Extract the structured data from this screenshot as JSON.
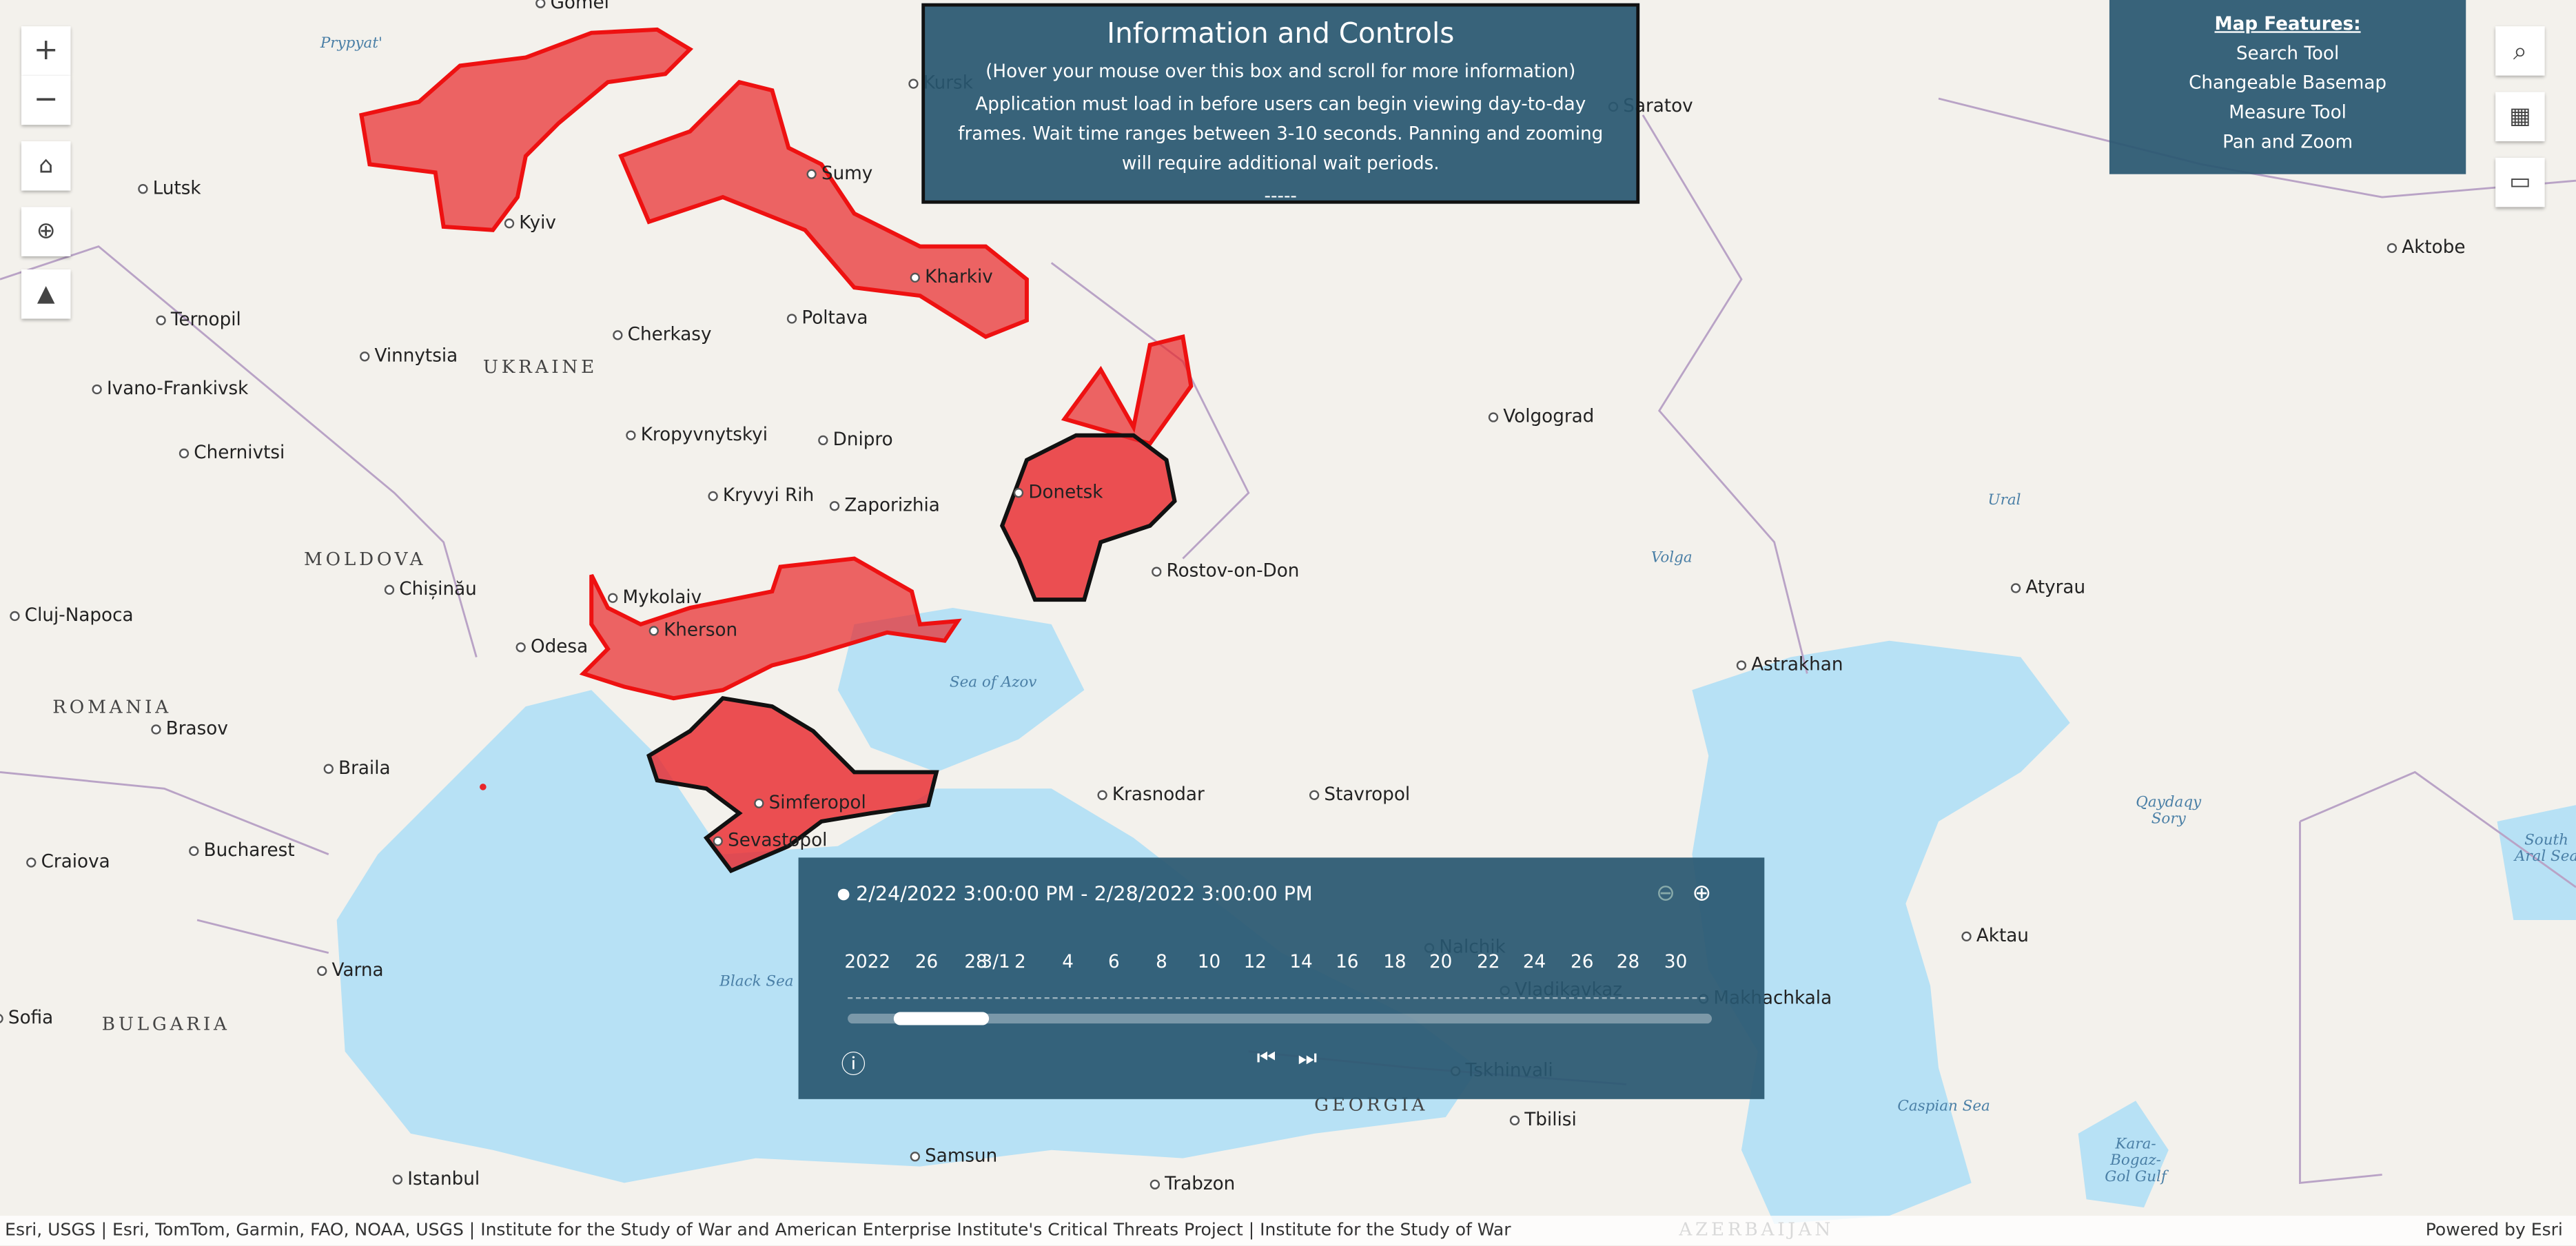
{
  "info_panel": {
    "title": "Information and Controls",
    "note": "(Hover your mouse over this box and scroll for more information)",
    "body": "Application must load in before users can begin viewing day-to-day frames. Wait time ranges between 3-10 seconds. Panning and zooming will require additional wait periods.",
    "divider": "-----"
  },
  "features_panel": {
    "title": "Map Features:",
    "items": [
      "Search Tool",
      "Changeable Basemap",
      "Measure Tool",
      "Pan and Zoom"
    ]
  },
  "map": {
    "places": [
      "Gomel",
      "Kursk",
      "Saratov",
      "Lutsk",
      "Kyiv",
      "Sumy",
      "Kharkiv",
      "Ternopil",
      "Poltava",
      "Cherkasy",
      "Vinnytsia",
      "Ivano-Frankivsk",
      "Volgograd",
      "Kropyvnytskyi",
      "Dnipro",
      "Chernivtsi",
      "Kryvyi Rih",
      "Zaporizhia",
      "Donetsk",
      "Chișinău",
      "Rostov-on-Don",
      "Mykolaiv",
      "Odesa",
      "Kherson",
      "Cluj-Napoca",
      "Atyrau",
      "Astrakhan",
      "Aktobe",
      "Brasov",
      "Braila",
      "Simferopol",
      "Krasnodar",
      "Stavropol",
      "Sevastopol",
      "Bucharest",
      "Craiova",
      "Aktau",
      "Nalchik",
      "Vladikavkaz",
      "Makhachkala",
      "Varna",
      "Sofia",
      "Tbilisi",
      "Samsun",
      "Trabzon",
      "Istanbul",
      "Tskhinvali"
    ],
    "countries": [
      "UKRAINE",
      "MOLDOVA",
      "ROMANIA",
      "BULGARIA",
      "GEORGIA",
      "AZERBAIJAN"
    ],
    "water": [
      "Prypyat'",
      "Sea of Azov",
      "Black Sea",
      "Caspian Sea",
      "Volga",
      "Ural",
      "Qaydaqy Sory",
      "Kara-Bogaz-Gol Gulf",
      "South Aral Sea"
    ]
  },
  "time_slider": {
    "range": "2/24/2022 3:00:00 PM - 2/28/2022 3:00:00 PM",
    "ticks": [
      "2022",
      "26",
      "28",
      "3/1",
      "2",
      "4",
      "6",
      "8",
      "10",
      "12",
      "14",
      "16",
      "18",
      "20",
      "22",
      "24",
      "26",
      "28",
      "30"
    ]
  },
  "attribution": "Esri, USGS | Esri, TomTom, Garmin, FAO, NOAA, USGS | Institute for the Study of War and American Enterprise Institute's Critical Threats Project | Institute for the Study of War",
  "powered_by": "Powered by Esri"
}
